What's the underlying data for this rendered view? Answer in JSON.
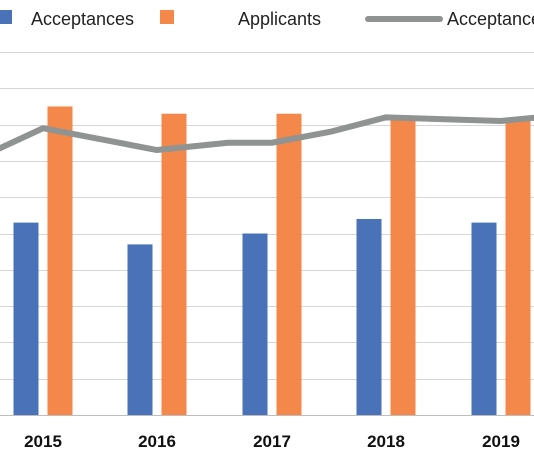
{
  "chart_data": {
    "type": "bar",
    "categories": [
      "2015",
      "2016",
      "2017",
      "2018",
      "2019"
    ],
    "series": [
      {
        "name": "Acceptances",
        "kind": "bar",
        "color": "#4a72b8",
        "values": [
          53,
          47,
          50,
          54,
          53
        ]
      },
      {
        "name": "Applicants",
        "kind": "bar",
        "color": "#f4884a",
        "values": [
          85,
          83,
          83,
          82,
          81
        ]
      },
      {
        "name": "Acceptance rate",
        "kind": "line",
        "color": "#8f9391",
        "values": [
          79,
          73,
          75,
          82,
          81
        ]
      }
    ],
    "line_extension": {
      "left_value": 73,
      "mid_values": [
        75,
        78
      ],
      "right_value": 82
    },
    "ylim": [
      0,
      100
    ],
    "gridlines": 10,
    "grid": true,
    "legend": "top",
    "legend_labels_visible": [
      "Acceptances",
      "Applicants",
      "Acceptance"
    ]
  }
}
